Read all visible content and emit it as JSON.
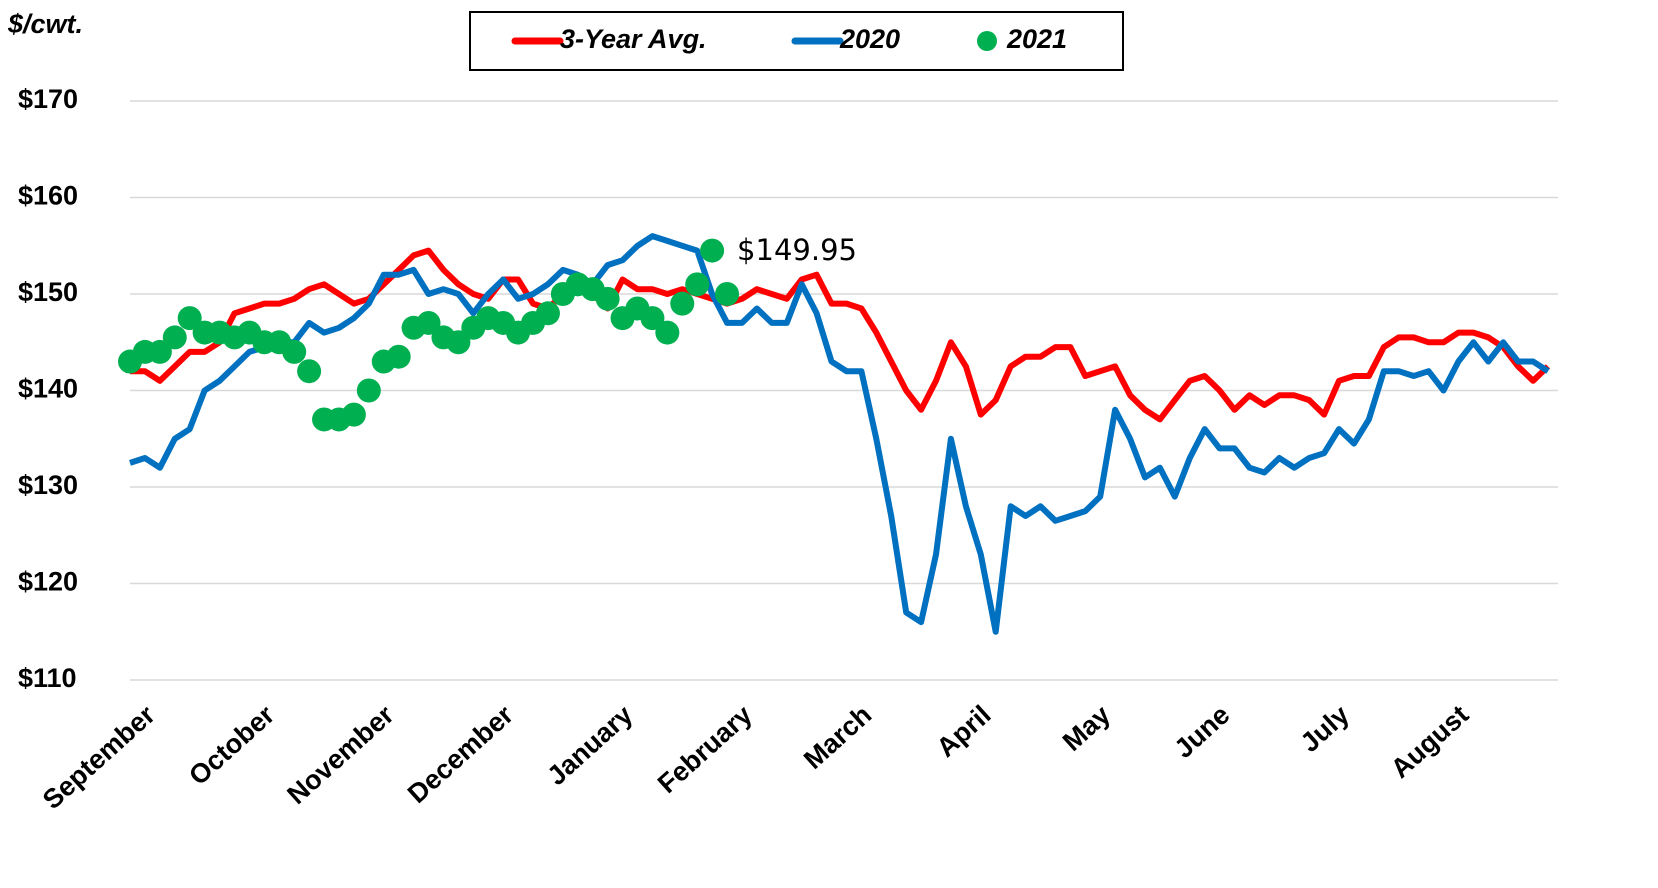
{
  "chart_data": {
    "type": "line",
    "y_label": "$/cwt.",
    "annotations": [
      "$149.95"
    ],
    "categories": [
      "September",
      null,
      null,
      null,
      null,
      null,
      null,
      null,
      "October",
      null,
      null,
      null,
      null,
      null,
      null,
      null,
      "November",
      null,
      null,
      null,
      null,
      null,
      null,
      null,
      "December",
      null,
      null,
      null,
      null,
      null,
      null,
      null,
      "January",
      null,
      null,
      null,
      null,
      null,
      null,
      null,
      "February",
      null,
      null,
      null,
      null,
      null,
      null,
      null,
      "March",
      null,
      null,
      null,
      null,
      null,
      null,
      null,
      "April",
      null,
      null,
      null,
      null,
      null,
      null,
      null,
      "May",
      null,
      null,
      null,
      null,
      null,
      null,
      null,
      "June",
      null,
      null,
      null,
      null,
      null,
      null,
      null,
      "July",
      null,
      null,
      null,
      null,
      null,
      null,
      null,
      "August",
      null,
      null,
      null,
      null,
      null,
      null,
      null
    ],
    "series": [
      {
        "name": "3-Year Avg.",
        "color": "#ff0000",
        "mode": "lines",
        "values": [
          142,
          142,
          141,
          142.5,
          144,
          144,
          145,
          148,
          148.5,
          149,
          149,
          149.5,
          150.5,
          151,
          150,
          149,
          149.5,
          151,
          152.5,
          154,
          154.5,
          152.5,
          151,
          150,
          149.5,
          151.5,
          151.5,
          149,
          148.5,
          150,
          151,
          150,
          148.5,
          151.5,
          150.5,
          150.5,
          150,
          150.5,
          150,
          149.5,
          149,
          149.5,
          150.5,
          150,
          149.5,
          151.5,
          152,
          149,
          149,
          148.5,
          146,
          143,
          140,
          138,
          141,
          145,
          142.5,
          137.5,
          139,
          142.5,
          143.5,
          143.5,
          144.5,
          144.5,
          141.5,
          142,
          142.5,
          139.5,
          138,
          137,
          139,
          141,
          141.5,
          140,
          138,
          139.5,
          138.5,
          139.5,
          139.5,
          139,
          137.5,
          141,
          141.5,
          141.5,
          144.5,
          145.5,
          145.5,
          145,
          145,
          146,
          146,
          145.5,
          144.5,
          142.5,
          141,
          142.5
        ]
      },
      {
        "name": "2020",
        "color": "#0070c0",
        "mode": "lines",
        "values": [
          132.5,
          133,
          132,
          135,
          136,
          140,
          141,
          142.5,
          144,
          144.5,
          145,
          145,
          147,
          146,
          146.5,
          147.5,
          149,
          152,
          152,
          152.5,
          150,
          150.5,
          150,
          148,
          150,
          151.5,
          149.5,
          150,
          151,
          152.5,
          152,
          151,
          153,
          153.5,
          155,
          156,
          155.5,
          155,
          154.5,
          150,
          147,
          147,
          148.5,
          147,
          147,
          151,
          148,
          143,
          142,
          142,
          135,
          127,
          117,
          116,
          123,
          135,
          128,
          123,
          115,
          128,
          127,
          128,
          126.5,
          127,
          127.5,
          129,
          138,
          135,
          131,
          132,
          129,
          133,
          136,
          134,
          134,
          132,
          131.5,
          133,
          132,
          133,
          133.5,
          136,
          134.5,
          137,
          142,
          142,
          141.5,
          142,
          140,
          143,
          145,
          143,
          145,
          143,
          143,
          142
        ]
      },
      {
        "name": "2021",
        "color": "#00b050",
        "mode": "markers",
        "values": [
          143,
          144,
          144,
          145.5,
          147.5,
          146,
          146,
          145.5,
          146,
          145,
          145,
          144,
          142,
          137,
          137,
          137.5,
          140,
          143,
          143.5,
          146.5,
          147,
          145.5,
          145,
          146.5,
          147.5,
          147,
          146,
          147,
          148,
          150,
          151,
          150.5,
          149.5,
          147.5,
          148.5,
          147.5,
          146,
          149,
          151,
          154.5,
          150,
          null,
          null,
          null,
          null,
          null,
          null,
          null,
          null,
          null,
          null,
          null,
          null,
          null,
          null,
          null,
          null,
          null,
          null,
          null,
          null,
          null,
          null,
          null,
          null,
          null,
          null,
          null,
          null,
          null,
          null,
          null,
          null,
          null,
          null,
          null,
          null,
          null,
          null,
          null,
          null,
          null,
          null,
          null,
          null,
          null,
          null,
          null,
          null,
          null,
          null,
          null,
          null,
          null,
          null,
          null
        ]
      }
    ],
    "ylim": [
      110,
      170
    ],
    "yticks": [
      {
        "value": 110,
        "label": "$110"
      },
      {
        "value": 120,
        "label": "$120"
      },
      {
        "value": 130,
        "label": "$130"
      },
      {
        "value": 140,
        "label": "$140"
      },
      {
        "value": 150,
        "label": "$150"
      },
      {
        "value": 160,
        "label": "$160"
      },
      {
        "value": 170,
        "label": "$170"
      }
    ],
    "grid": true
  }
}
